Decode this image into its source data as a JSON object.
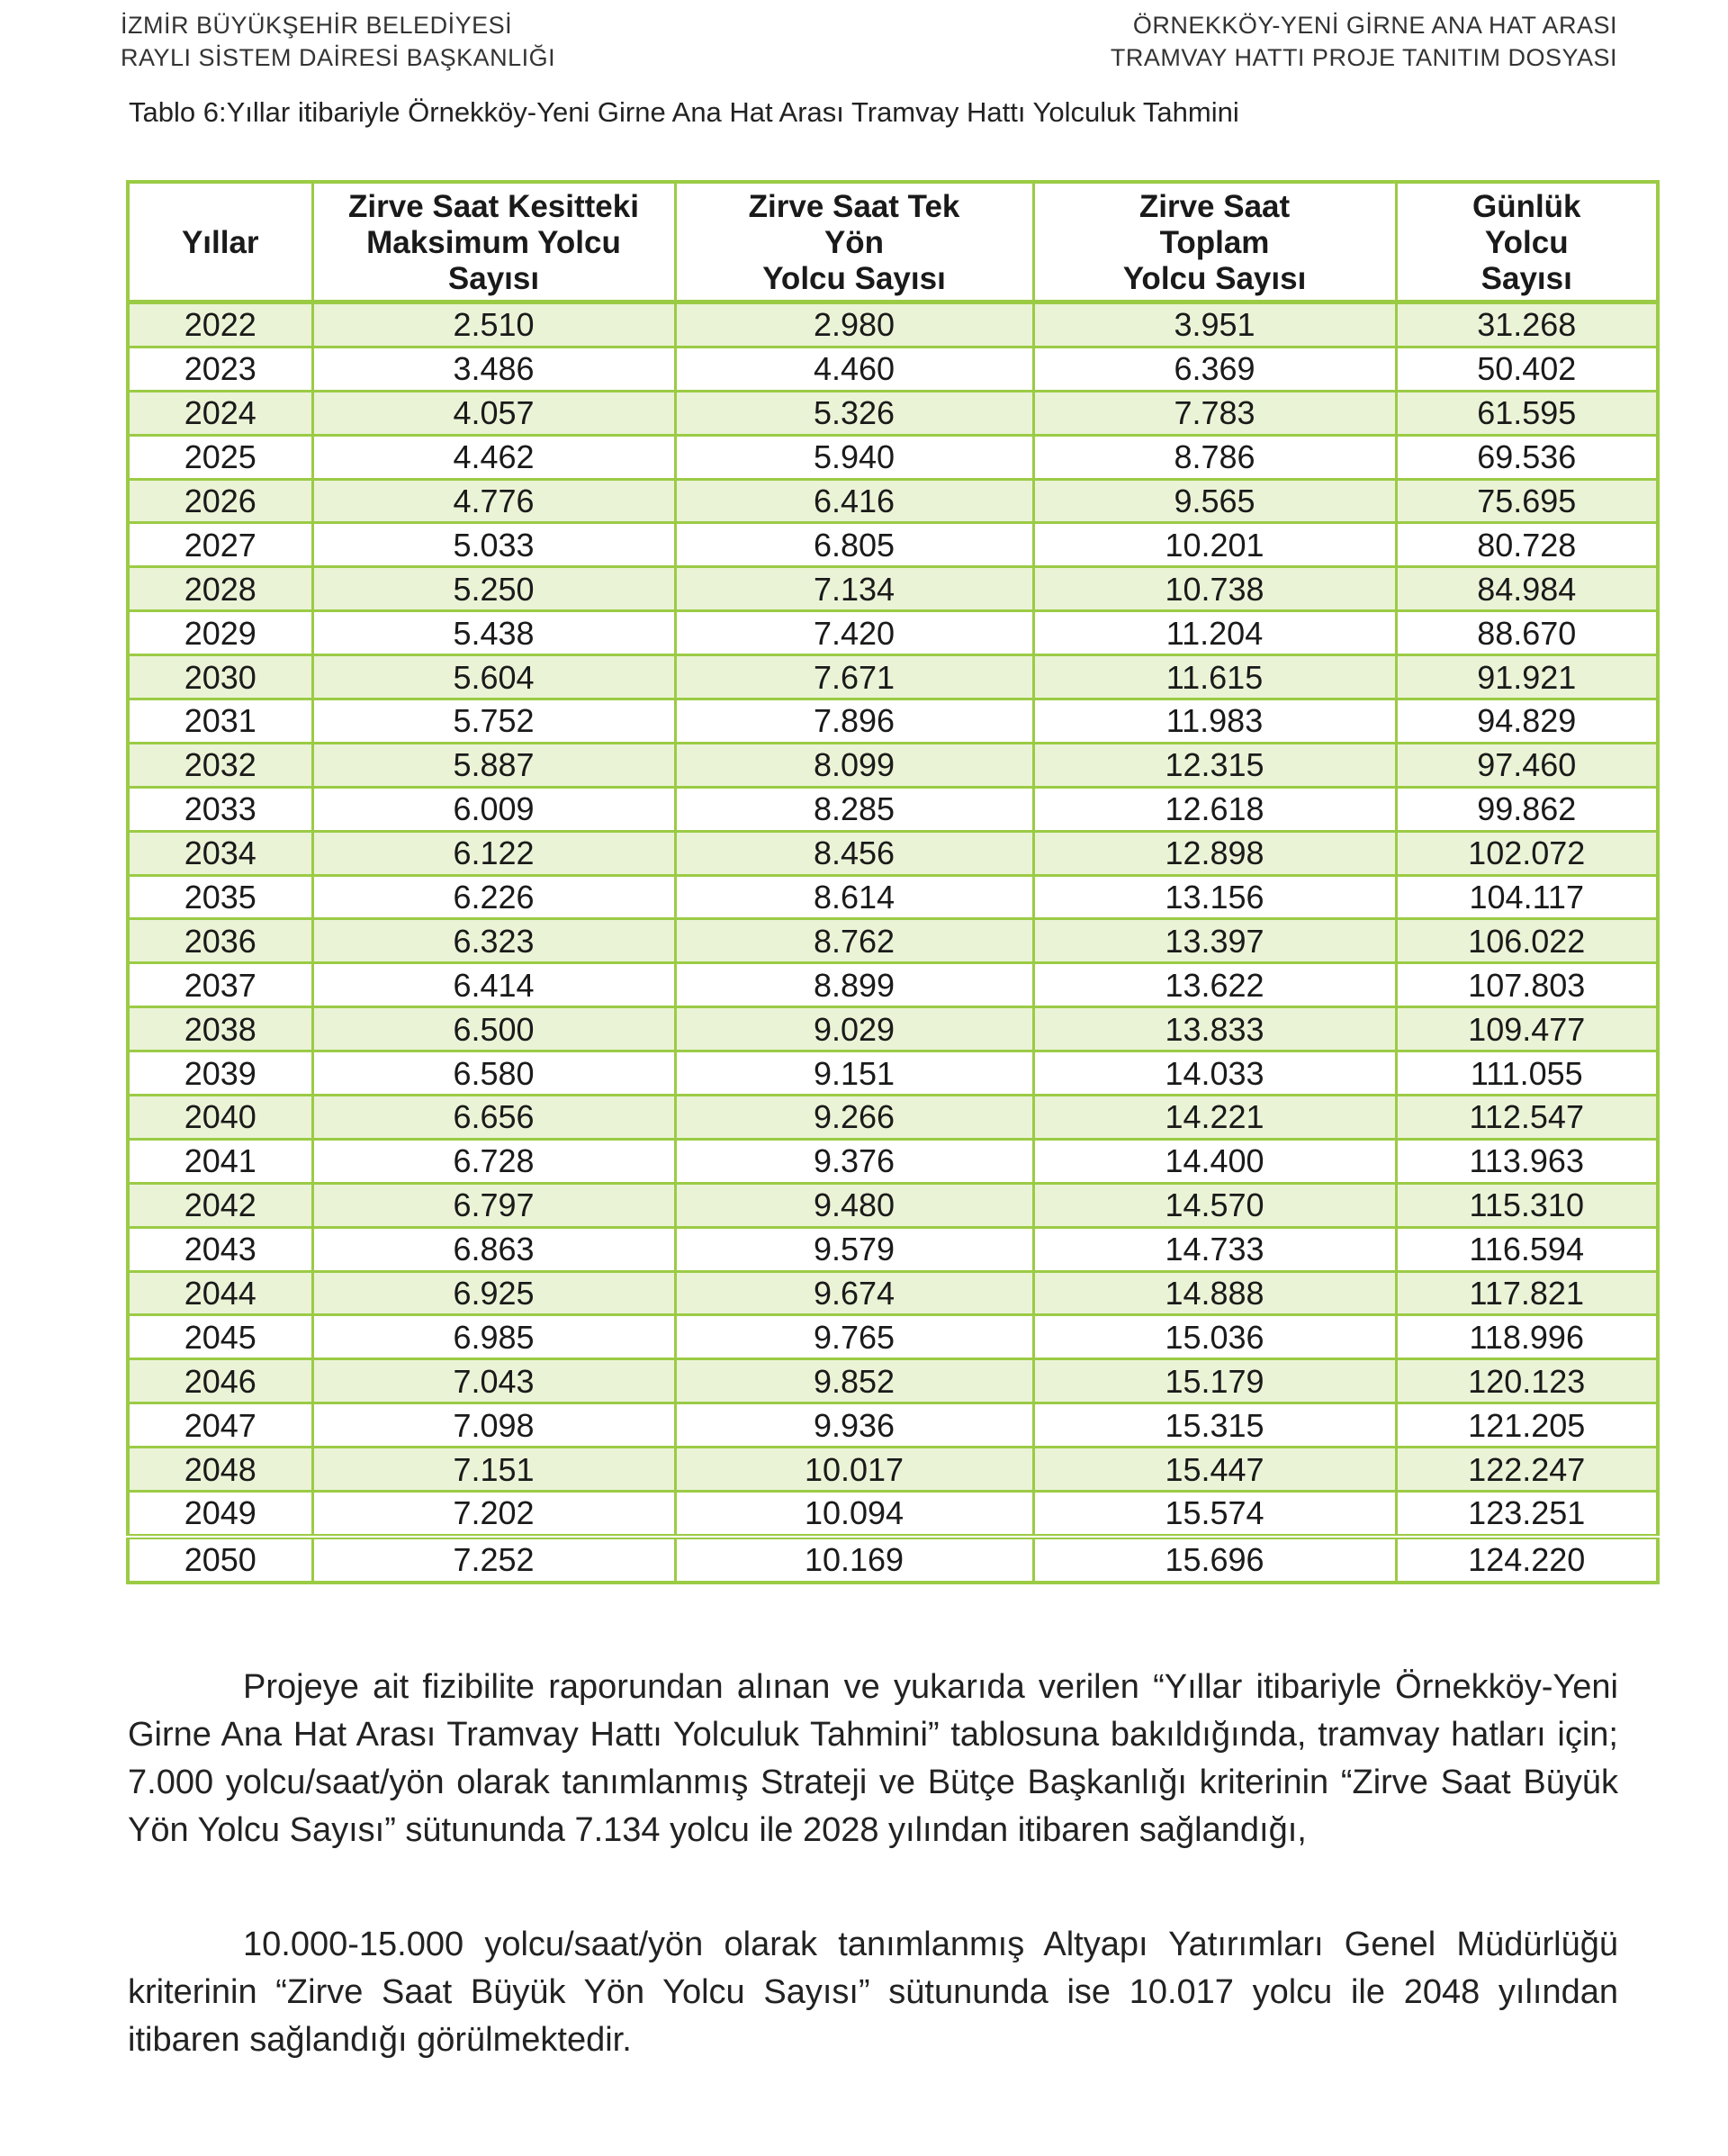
{
  "header": {
    "left_line1": "İZMİR BÜYÜKŞEHİR BELEDİYESİ",
    "left_line2": "RAYLI SİSTEM DAİRESİ BAŞKANLIĞI",
    "right_line1": "ÖRNEKKÖY-YENİ GİRNE ANA HAT ARASI",
    "right_line2": "TRAMVAY HATTI PROJE TANITIM DOSYASI"
  },
  "caption": "Tablo 6:Yıllar itibariyle Örnekköy-Yeni Girne Ana Hat Arası Tramvay Hattı Yolculuk Tahmini",
  "table": {
    "headers": [
      [
        "Yıllar"
      ],
      [
        "Zirve Saat Kesitteki",
        "Maksimum Yolcu",
        "Sayısı"
      ],
      [
        "Zirve Saat Tek",
        "Yön",
        "Yolcu Sayısı"
      ],
      [
        "Zirve Saat",
        "Toplam",
        "Yolcu Sayısı"
      ],
      [
        "Günlük",
        "Yolcu",
        "Sayısı"
      ]
    ],
    "rows": [
      [
        "2022",
        "2.510",
        "2.980",
        "3.951",
        "31.268"
      ],
      [
        "2023",
        "3.486",
        "4.460",
        "6.369",
        "50.402"
      ],
      [
        "2024",
        "4.057",
        "5.326",
        "7.783",
        "61.595"
      ],
      [
        "2025",
        "4.462",
        "5.940",
        "8.786",
        "69.536"
      ],
      [
        "2026",
        "4.776",
        "6.416",
        "9.565",
        "75.695"
      ],
      [
        "2027",
        "5.033",
        "6.805",
        "10.201",
        "80.728"
      ],
      [
        "2028",
        "5.250",
        "7.134",
        "10.738",
        "84.984"
      ],
      [
        "2029",
        "5.438",
        "7.420",
        "11.204",
        "88.670"
      ],
      [
        "2030",
        "5.604",
        "7.671",
        "11.615",
        "91.921"
      ],
      [
        "2031",
        "5.752",
        "7.896",
        "11.983",
        "94.829"
      ],
      [
        "2032",
        "5.887",
        "8.099",
        "12.315",
        "97.460"
      ],
      [
        "2033",
        "6.009",
        "8.285",
        "12.618",
        "99.862"
      ],
      [
        "2034",
        "6.122",
        "8.456",
        "12.898",
        "102.072"
      ],
      [
        "2035",
        "6.226",
        "8.614",
        "13.156",
        "104.117"
      ],
      [
        "2036",
        "6.323",
        "8.762",
        "13.397",
        "106.022"
      ],
      [
        "2037",
        "6.414",
        "8.899",
        "13.622",
        "107.803"
      ],
      [
        "2038",
        "6.500",
        "9.029",
        "13.833",
        "109.477"
      ],
      [
        "2039",
        "6.580",
        "9.151",
        "14.033",
        "111.055"
      ],
      [
        "2040",
        "6.656",
        "9.266",
        "14.221",
        "112.547"
      ],
      [
        "2041",
        "6.728",
        "9.376",
        "14.400",
        "113.963"
      ],
      [
        "2042",
        "6.797",
        "9.480",
        "14.570",
        "115.310"
      ],
      [
        "2043",
        "6.863",
        "9.579",
        "14.733",
        "116.594"
      ],
      [
        "2044",
        "6.925",
        "9.674",
        "14.888",
        "117.821"
      ],
      [
        "2045",
        "6.985",
        "9.765",
        "15.036",
        "118.996"
      ],
      [
        "2046",
        "7.043",
        "9.852",
        "15.179",
        "120.123"
      ],
      [
        "2047",
        "7.098",
        "9.936",
        "15.315",
        "121.205"
      ],
      [
        "2048",
        "7.151",
        "10.017",
        "15.447",
        "122.247"
      ],
      [
        "2049",
        "7.202",
        "10.094",
        "15.574",
        "123.251"
      ],
      [
        "2050",
        "7.252",
        "10.169",
        "15.696",
        "124.220"
      ]
    ]
  },
  "paragraphs": [
    "Projeye ait fizibilite raporundan alınan ve yukarıda verilen “Yıllar itibariyle Örnekköy-Yeni Girne Ana Hat Arası Tramvay Hattı Yolculuk Tahmini” tablosuna bakıldığında, tramvay hatları için; 7.000 yolcu/saat/yön olarak tanımlanmış Strateji ve Bütçe Başkanlığı kriterinin “Zirve Saat Büyük Yön Yolcu Sayısı” sütununda 7.134 yolcu ile 2028 yılından itibaren sağlandığı,",
    "10.000-15.000 yolcu/saat/yön olarak tanımlanmış Altyapı Yatırımları Genel Müdürlüğü kriterinin “Zirve Saat Büyük Yön Yolcu Sayısı” sütununda ise 10.017 yolcu ile 2048 yılından itibaren sağlandığı görülmektedir."
  ]
}
